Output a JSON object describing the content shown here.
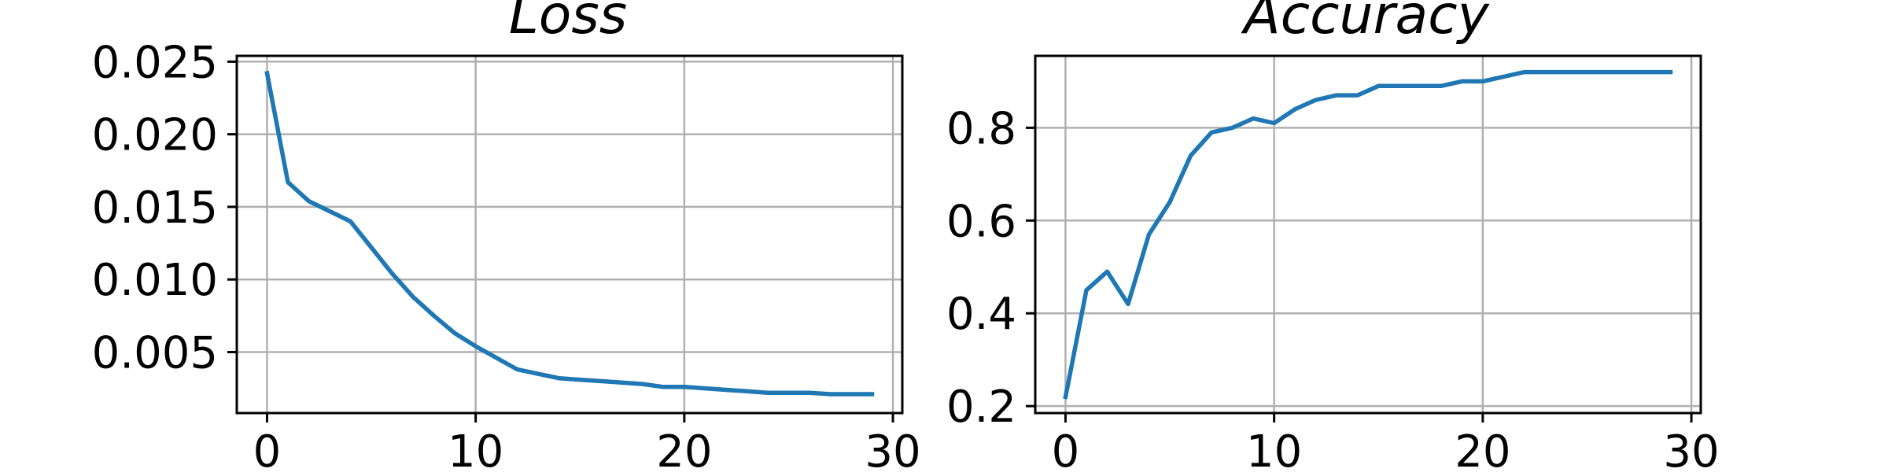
{
  "colors": {
    "line": "#1f77b4",
    "grid": "#b0b0b0",
    "frame": "#000000",
    "background": "#ffffff"
  },
  "chart_data": [
    {
      "type": "line",
      "title": "Loss",
      "xlabel": "",
      "ylabel": "",
      "grid": true,
      "xlim": [
        -1.45,
        30.45
      ],
      "ylim": [
        0.0008,
        0.0254
      ],
      "xticks": [
        0,
        10,
        20,
        30
      ],
      "xtick_labels": [
        "0",
        "10",
        "20",
        "30"
      ],
      "yticks": [
        0.005,
        0.01,
        0.015,
        0.02,
        0.025
      ],
      "ytick_labels": [
        "0.005",
        "0.010",
        "0.015",
        "0.020",
        "0.025"
      ],
      "series": [
        {
          "x": [
            0,
            1,
            2,
            3,
            4,
            5,
            6,
            7,
            8,
            9,
            10,
            11,
            12,
            13,
            14,
            15,
            16,
            17,
            18,
            19,
            20,
            21,
            22,
            23,
            24,
            25,
            26,
            27,
            28,
            29
          ],
          "values": [
            0.0242,
            0.0167,
            0.0154,
            0.0147,
            0.014,
            0.0122,
            0.0104,
            0.0088,
            0.0075,
            0.0063,
            0.0054,
            0.0046,
            0.0038,
            0.0035,
            0.0032,
            0.0031,
            0.003,
            0.0029,
            0.0028,
            0.0026,
            0.0026,
            0.0025,
            0.0024,
            0.0023,
            0.0022,
            0.0022,
            0.0022,
            0.0021,
            0.0021,
            0.0021
          ]
        }
      ]
    },
    {
      "type": "line",
      "title": "Accuracy",
      "xlabel": "",
      "ylabel": "",
      "grid": true,
      "xlim": [
        -1.45,
        30.45
      ],
      "ylim": [
        0.185,
        0.955
      ],
      "xticks": [
        0,
        10,
        20,
        30
      ],
      "xtick_labels": [
        "0",
        "10",
        "20",
        "30"
      ],
      "yticks": [
        0.2,
        0.4,
        0.6,
        0.8
      ],
      "ytick_labels": [
        "0.2",
        "0.4",
        "0.6",
        "0.8"
      ],
      "series": [
        {
          "x": [
            0,
            1,
            2,
            3,
            4,
            5,
            6,
            7,
            8,
            9,
            10,
            11,
            12,
            13,
            14,
            15,
            16,
            17,
            18,
            19,
            20,
            21,
            22,
            23,
            24,
            25,
            26,
            27,
            28,
            29
          ],
          "values": [
            0.22,
            0.45,
            0.49,
            0.42,
            0.57,
            0.64,
            0.74,
            0.79,
            0.8,
            0.82,
            0.81,
            0.84,
            0.86,
            0.87,
            0.87,
            0.89,
            0.89,
            0.89,
            0.89,
            0.9,
            0.9,
            0.91,
            0.92,
            0.92,
            0.92,
            0.92,
            0.92,
            0.92,
            0.92,
            0.92
          ]
        }
      ]
    }
  ]
}
